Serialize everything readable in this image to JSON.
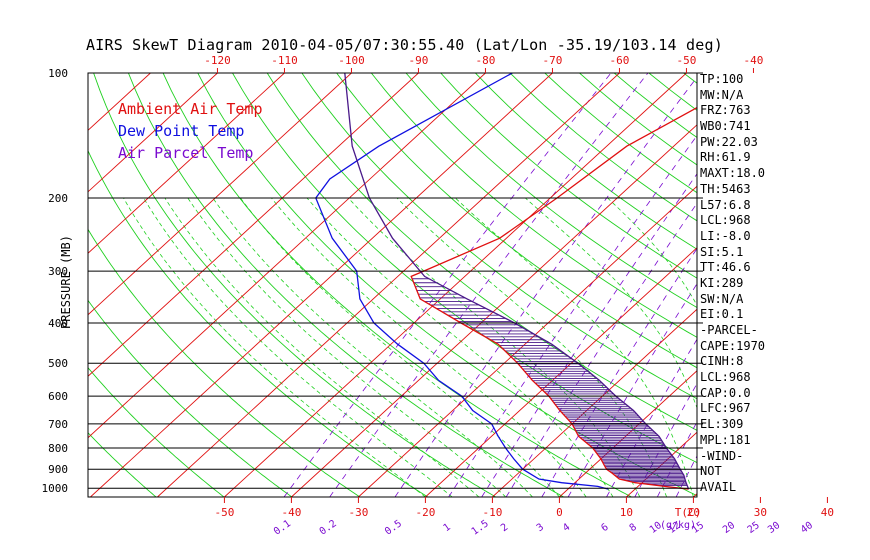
{
  "title": "AIRS SkewT Diagram 2010-04-05/07:30:55.40 (Lat/Lon -35.19/103.14 deg)",
  "legend": [
    {
      "label": "Ambient Air Temp",
      "color": "#e01010"
    },
    {
      "label": "Dew Point Temp",
      "color": "#1010e0"
    },
    {
      "label": "Air Parcel Temp",
      "color": "#7a0ad0"
    }
  ],
  "ylabel": "PRESSURE (MB)",
  "indices": [
    "TP:100",
    "MW:N/A",
    "FRZ:763",
    "WB0:741",
    "PW:22.03",
    "RH:61.9",
    "MAXT:18.0",
    "TH:5463",
    "L57:6.8",
    "LCL:968",
    "LI:-8.0",
    "SI:5.1",
    "TT:46.6",
    "KI:289",
    "SW:N/A",
    "EI:0.1",
    "-PARCEL-",
    "CAPE:1970",
    "CINH:8",
    "LCL:968",
    "CAP:0.0",
    "LFC:967",
    "EL:309",
    "MPL:181",
    "-WIND-",
    "NOT",
    "AVAIL"
  ],
  "colors": {
    "isotherm": "#e01010",
    "dry_adiabat": "#20d020",
    "mixing_ratio": "#7a0ad0",
    "temperature": "#e01010",
    "dewpoint": "#1010e0",
    "parcel": "#4a1a8a",
    "axis": "#000000",
    "tick_red": "#e01010",
    "hatch": "#4a1a8a"
  },
  "chart_data": {
    "type": "line",
    "title": "AIRS SkewT Diagram 2010-04-05/07:30:55.40 (Lat/Lon -35.19/103.14 deg)",
    "ylabel": "PRESSURE (MB)",
    "xlabel": "T(C)",
    "ylim": [
      1050,
      100
    ],
    "y_scale": "log",
    "isobars_labeled": [
      1000,
      900,
      800,
      700,
      600,
      500,
      400,
      300,
      200,
      100
    ],
    "bottom_temp_ticks": [
      -50,
      -40,
      -30,
      -20,
      -10,
      0,
      10,
      20,
      30,
      40
    ],
    "top_temp_ticks": [
      -120,
      -110,
      -100,
      -90,
      -80,
      -70,
      -60,
      -50,
      -40
    ],
    "mixing_ratio_ticks": [
      "0.1",
      "0.2",
      "0.5",
      "1",
      "1.5",
      "2",
      "3",
      "4",
      "6",
      "8",
      "10",
      "12",
      "15",
      "20",
      "25",
      "30",
      "40"
    ],
    "mixing_ratio_axis_label": "(g/kg)",
    "series": [
      {
        "name": "Ambient Air Temp",
        "points": [
          [
            1005,
            18
          ],
          [
            990,
            14
          ],
          [
            970,
            9
          ],
          [
            950,
            6
          ],
          [
            920,
            4
          ],
          [
            900,
            2.5
          ],
          [
            880,
            1.5
          ],
          [
            850,
            0
          ],
          [
            800,
            -3
          ],
          [
            750,
            -7
          ],
          [
            700,
            -10
          ],
          [
            650,
            -14
          ],
          [
            600,
            -18
          ],
          [
            550,
            -23
          ],
          [
            500,
            -28
          ],
          [
            450,
            -34
          ],
          [
            400,
            -43
          ],
          [
            350,
            -53
          ],
          [
            309,
            -58
          ],
          [
            300,
            -57
          ],
          [
            250,
            -51
          ],
          [
            200,
            -49
          ],
          [
            150,
            -47
          ],
          [
            100,
            -39
          ]
        ]
      },
      {
        "name": "Dew Point Temp",
        "points": [
          [
            1005,
            6
          ],
          [
            990,
            4
          ],
          [
            970,
            -2
          ],
          [
            950,
            -6
          ],
          [
            900,
            -10
          ],
          [
            850,
            -13
          ],
          [
            800,
            -16
          ],
          [
            750,
            -19
          ],
          [
            700,
            -22
          ],
          [
            650,
            -27
          ],
          [
            600,
            -31
          ],
          [
            550,
            -37
          ],
          [
            500,
            -42
          ],
          [
            450,
            -49
          ],
          [
            400,
            -56
          ],
          [
            350,
            -62
          ],
          [
            300,
            -67
          ],
          [
            250,
            -76
          ],
          [
            200,
            -85
          ],
          [
            180,
            -86
          ],
          [
            150,
            -84
          ],
          [
            100,
            -76
          ]
        ]
      },
      {
        "name": "Air Parcel Temp",
        "points": [
          [
            1005,
            18
          ],
          [
            968,
            16.5
          ],
          [
            930,
            15
          ],
          [
            900,
            13.5
          ],
          [
            850,
            11
          ],
          [
            800,
            8
          ],
          [
            750,
            5
          ],
          [
            700,
            1
          ],
          [
            650,
            -3
          ],
          [
            600,
            -8
          ],
          [
            550,
            -13
          ],
          [
            500,
            -19
          ],
          [
            450,
            -26
          ],
          [
            400,
            -35
          ],
          [
            350,
            -46
          ],
          [
            309,
            -56
          ],
          [
            250,
            -67
          ],
          [
            200,
            -77
          ],
          [
            150,
            -88
          ],
          [
            100,
            -101
          ]
        ]
      }
    ]
  }
}
